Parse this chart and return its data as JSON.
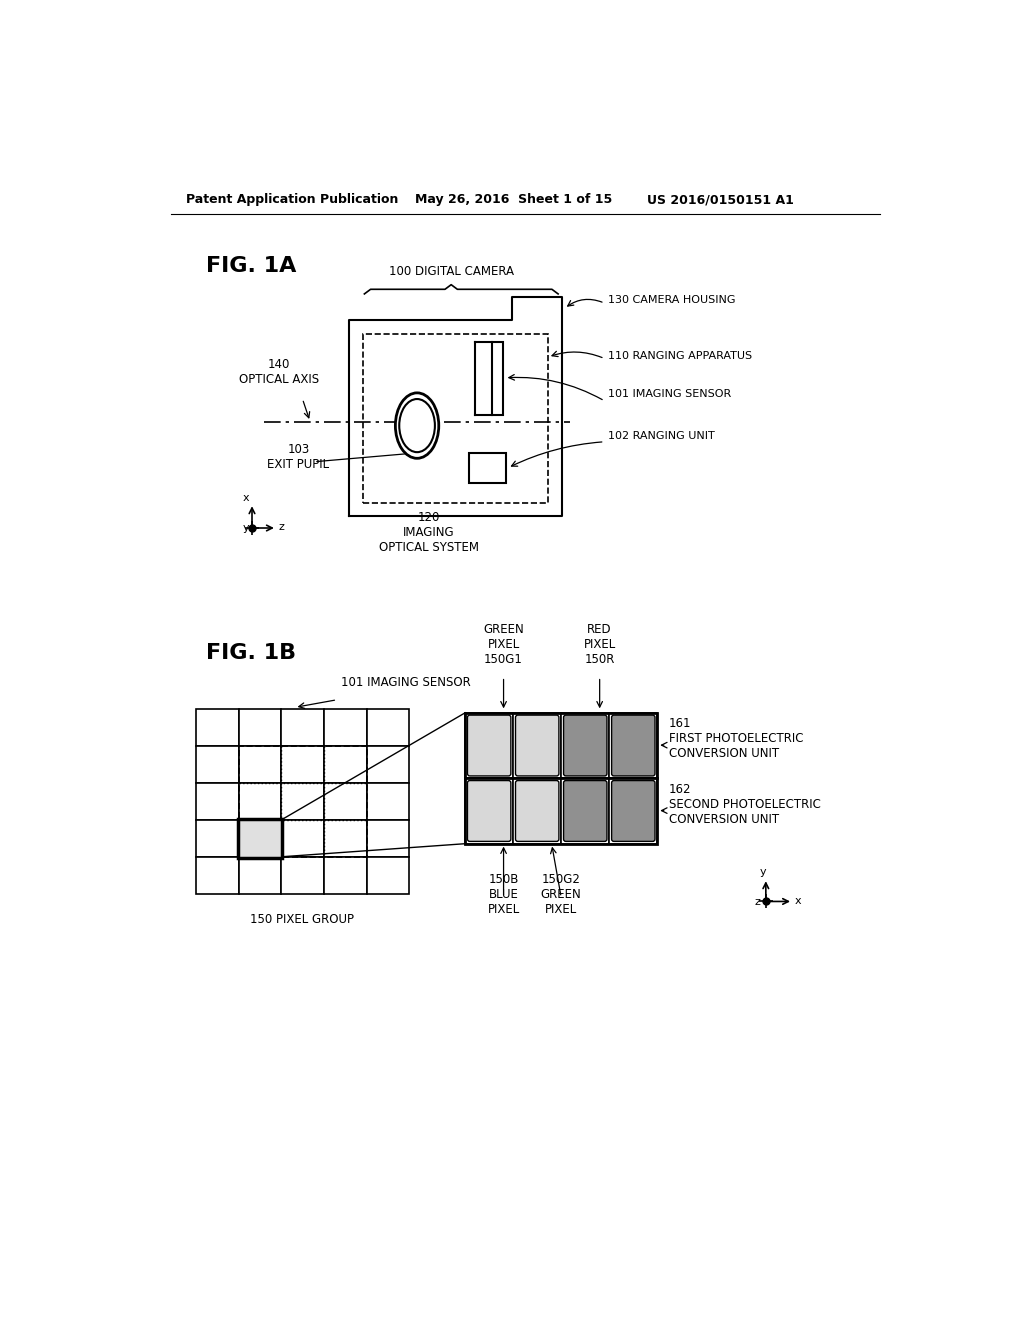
{
  "bg_color": "#ffffff",
  "header_left": "Patent Application Publication",
  "header_mid": "May 26, 2016  Sheet 1 of 15",
  "header_right": "US 2016/0150151 A1",
  "fig1a_label": "FIG. 1A",
  "fig1b_label": "FIG. 1B",
  "label_100": "100 DIGITAL CAMERA",
  "label_130": "130 CAMERA HOUSING",
  "label_110": "110 RANGING APPARATUS",
  "label_101a": "101 IMAGING SENSOR",
  "label_102": "102 RANGING UNIT",
  "label_103": "103\nEXIT PUPIL",
  "label_120": "120\nIMAGING\nOPTICAL SYSTEM",
  "label_140": "140\nOPTICAL AXIS",
  "label_101b": "101 IMAGING SENSOR",
  "label_green": "GREEN\nPIXEL\n150G1",
  "label_red": "RED\nPIXEL\n150R",
  "label_161": "161\nFIRST PHOTOELECTRIC\nCONVERSION UNIT",
  "label_162": "162\nSECOND PHOTOELECTRIC\nCONVERSION UNIT",
  "label_150b": "150B\nBLUE\nPIXEL",
  "label_150g2": "150G2\nGREEN\nPIXEL",
  "label_150pg": "150 PIXEL GROUP",
  "pixel_light": "#d8d8d8",
  "pixel_dark": "#909090"
}
